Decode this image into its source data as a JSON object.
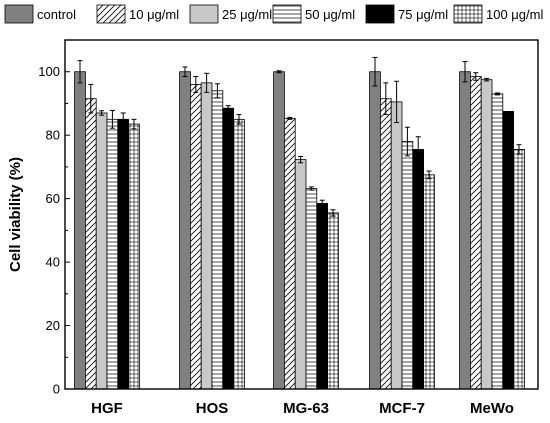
{
  "chart_data": {
    "type": "bar",
    "title": "",
    "xlabel": "",
    "ylabel": "Cell viability (%)",
    "ylim": [
      0,
      110
    ],
    "yticks": [
      "0",
      "20",
      "40",
      "60",
      "80",
      "100"
    ],
    "ytick_values": [
      0,
      20,
      40,
      60,
      80,
      100
    ],
    "legend_position": "top",
    "categories": [
      "HGF",
      "HOS",
      "MG-63",
      "MCF-7",
      "MeWo"
    ],
    "series": [
      {
        "name": "control",
        "fill": "#808080",
        "pattern": "solid-gray",
        "values": [
          100,
          100,
          100,
          100,
          100
        ],
        "errors": [
          3.5,
          1.5,
          0.3,
          4.5,
          3.2
        ]
      },
      {
        "name": "10 μg/ml",
        "fill": "#ffffff",
        "pattern": "diagonal",
        "values": [
          91.5,
          96,
          85.3,
          91.5,
          98.5
        ],
        "errors": [
          4.5,
          2.5,
          0.3,
          5,
          1.2
        ]
      },
      {
        "name": "25 μg/ml",
        "fill": "#c8c8c8",
        "pattern": "solid-lightgray",
        "values": [
          87,
          96.5,
          72.3,
          90.5,
          97.5
        ],
        "errors": [
          0.7,
          3,
          1,
          6.5,
          0.4
        ]
      },
      {
        "name": "50 μg/ml",
        "fill": "#ffffff",
        "pattern": "horizontal",
        "values": [
          85,
          94,
          63.2,
          78,
          93
        ],
        "errors": [
          2.8,
          2.2,
          0.5,
          4.5,
          0.3
        ]
      },
      {
        "name": "75 μg/ml",
        "fill": "#000000",
        "pattern": "solid-black",
        "values": [
          85,
          88.5,
          58.5,
          75.5,
          87.5
        ],
        "errors": [
          2,
          0.8,
          1,
          4,
          0
        ]
      },
      {
        "name": "100 μg/ml",
        "fill": "#ffffff",
        "pattern": "grid",
        "values": [
          83.5,
          85,
          55.5,
          67.5,
          75.5
        ],
        "errors": [
          1.5,
          1.5,
          1,
          1.2,
          1.5
        ]
      }
    ]
  }
}
